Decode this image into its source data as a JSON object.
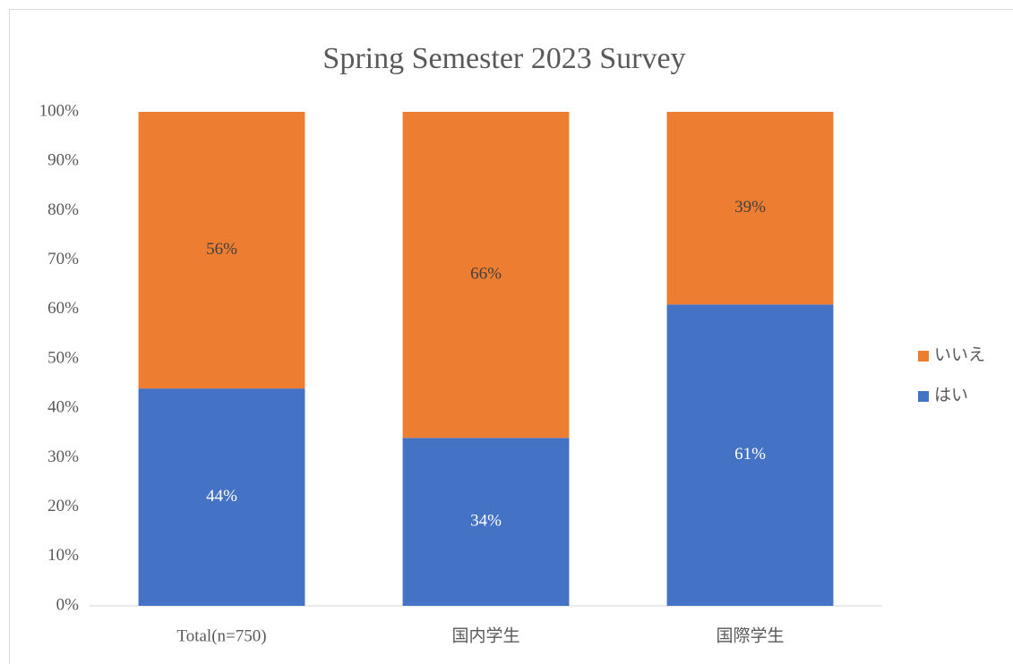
{
  "chart_data": {
    "type": "stacked_bar",
    "title": "Spring Semester 2023 Survey",
    "categories": [
      "Total(n=750)",
      "国内学生",
      "国際学生"
    ],
    "series": [
      {
        "name": "はい",
        "color": "#4472c4",
        "values": [
          44,
          34,
          61
        ],
        "value_labels": [
          "44%",
          "34%",
          "61%"
        ]
      },
      {
        "name": "いいえ",
        "color": "#ed7d31",
        "values": [
          56,
          66,
          39
        ],
        "value_labels": [
          "56%",
          "66%",
          "39%"
        ]
      }
    ],
    "ylim": [
      0,
      100
    ],
    "yticks": [
      {
        "value": 0,
        "label": "0%"
      },
      {
        "value": 10,
        "label": "10%"
      },
      {
        "value": 20,
        "label": "20%"
      },
      {
        "value": 30,
        "label": "30%"
      },
      {
        "value": 40,
        "label": "40%"
      },
      {
        "value": 50,
        "label": "50%"
      },
      {
        "value": 60,
        "label": "60%"
      },
      {
        "value": 70,
        "label": "70%"
      },
      {
        "value": 80,
        "label": "80%"
      },
      {
        "value": 90,
        "label": "90%"
      },
      {
        "value": 100,
        "label": "100%"
      }
    ],
    "grid": false,
    "legend": "right"
  }
}
